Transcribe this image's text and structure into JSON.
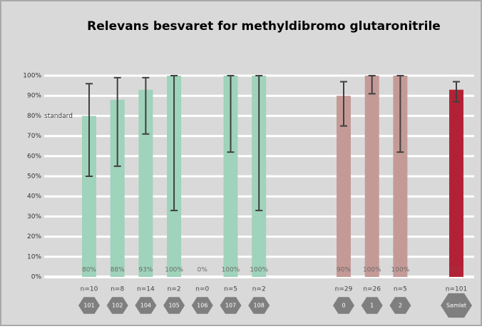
{
  "chart_data": {
    "type": "bar",
    "title": "Relevans besvaret for methyldibromo glutaronitrile",
    "ylim": [
      0,
      100
    ],
    "yticks": [
      {
        "value": 0,
        "label": "0%"
      },
      {
        "value": 10,
        "label": "10%"
      },
      {
        "value": 20,
        "label": "20%"
      },
      {
        "value": 30,
        "label": "30%"
      },
      {
        "value": 40,
        "label": "40%"
      },
      {
        "value": 50,
        "label": "50%"
      },
      {
        "value": 60,
        "label": "60%"
      },
      {
        "value": 70,
        "label": "70%"
      },
      {
        "value": 80,
        "label": "80%"
      },
      {
        "value": 90,
        "label": "90%"
      },
      {
        "value": 100,
        "label": "100%"
      }
    ],
    "grid": true,
    "annotation": {
      "text": "standard",
      "value": 80
    },
    "groups": [
      {
        "color": "#9fd3bb",
        "bars": [
          {
            "category": "101",
            "n": "n=10",
            "value": 80,
            "value_label": "80%",
            "error": [
              50,
              96
            ]
          },
          {
            "category": "102",
            "n": "n=8",
            "value": 88,
            "value_label": "88%",
            "error": [
              55,
              99
            ]
          },
          {
            "category": "104",
            "n": "n=14",
            "value": 93,
            "value_label": "93%",
            "error": [
              71,
              99
            ]
          },
          {
            "category": "105",
            "n": "n=2",
            "value": 100,
            "value_label": "100%",
            "error": [
              33,
              100
            ]
          },
          {
            "category": "106",
            "n": "n=0",
            "value": 0,
            "value_label": "0%",
            "error": null
          },
          {
            "category": "107",
            "n": "n=5",
            "value": 100,
            "value_label": "100%",
            "error": [
              62,
              100
            ]
          },
          {
            "category": "108",
            "n": "n=2",
            "value": 100,
            "value_label": "100%",
            "error": [
              33,
              100
            ]
          }
        ]
      },
      {
        "color": "#c49a97",
        "bars": [
          {
            "category": "0",
            "n": "n=29",
            "value": 90,
            "value_label": "90%",
            "error": [
              75,
              97
            ]
          },
          {
            "category": "1",
            "n": "n=26",
            "value": 100,
            "value_label": "100%",
            "error": [
              91,
              100
            ]
          },
          {
            "category": "2",
            "n": "n=5",
            "value": 100,
            "value_label": "100%",
            "error": [
              62,
              100
            ]
          }
        ]
      },
      {
        "color": "#b22236",
        "bars": [
          {
            "category": "Samlet",
            "n": "n=101",
            "value": 93,
            "value_label": "93%",
            "error": [
              87,
              97
            ]
          }
        ]
      }
    ]
  }
}
